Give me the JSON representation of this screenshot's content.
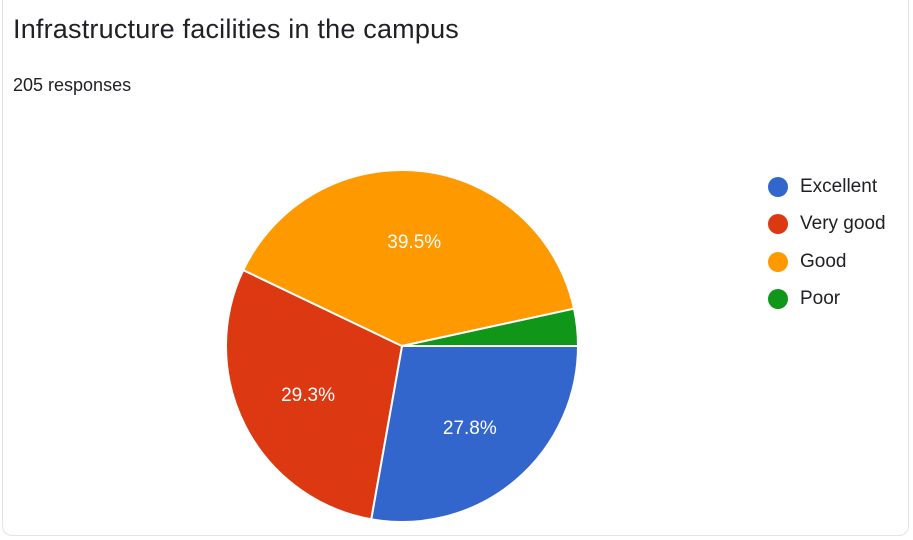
{
  "title": "Infrastructure facilities in the campus",
  "subtitle": "205 responses",
  "chart_data": {
    "type": "pie",
    "title": "Infrastructure facilities in the campus",
    "subtitle": "205 responses",
    "legend_position": "right",
    "slices": [
      {
        "label": "Excellent",
        "value": 27.8,
        "color": "#3366CC",
        "display": "27.8%"
      },
      {
        "label": "Very good",
        "value": 29.3,
        "color": "#DC3912",
        "display": "29.3%"
      },
      {
        "label": "Good",
        "value": 39.5,
        "color": "#FF9900",
        "display": "39.5%"
      },
      {
        "label": "Poor",
        "value": 3.4,
        "color": "#109618",
        "display": ""
      }
    ]
  }
}
